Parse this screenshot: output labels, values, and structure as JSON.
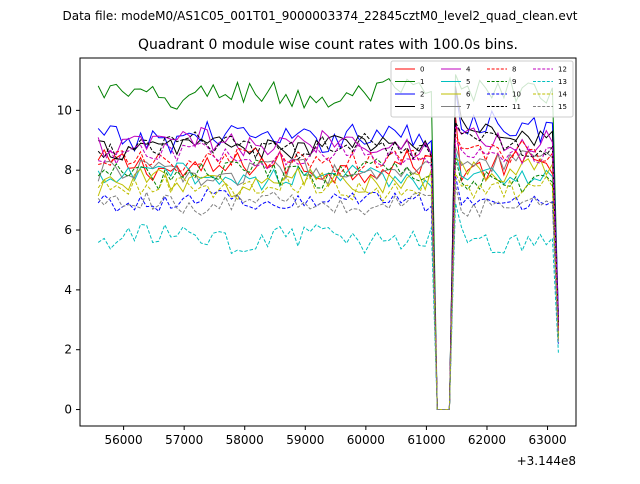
{
  "chart_data": {
    "type": "line",
    "suptitle": "Data file: modeM0/AS1C05_001T01_9000003374_22845cztM0_level2_quad_clean.evt",
    "title": "Quadrant 0 module wise count rates with 100.0s bins.",
    "xlabel": "",
    "ylabel": "",
    "x_offset_label": "+3.144e8",
    "xlim": [
      55280,
      63470
    ],
    "ylim": [
      -0.55,
      11.75
    ],
    "xticks": [
      56000,
      57000,
      58000,
      59000,
      60000,
      61000,
      62000,
      63000
    ],
    "xtick_labels": [
      "56000",
      "57000",
      "58000",
      "59000",
      "60000",
      "61000",
      "62000",
      "63000"
    ],
    "yticks": [
      0,
      2,
      4,
      6,
      8,
      10
    ],
    "ytick_labels": [
      "0",
      "2",
      "4",
      "6",
      "8",
      "10"
    ],
    "grid": false,
    "legend_position": "top-right",
    "legend_columns": 4,
    "gap_start": 61000,
    "gap_end": 61560,
    "x_start": 55580,
    "x_end": 63180,
    "x_step": 100,
    "series": [
      {
        "name": "0",
        "color": "#ff0000",
        "dash": "solid",
        "base": 8.1,
        "amp": 0.45,
        "phase": 0.3,
        "spike": 9.8,
        "post": 8.1,
        "end": 2.6
      },
      {
        "name": "1",
        "color": "#008000",
        "dash": "solid",
        "base": 10.5,
        "amp": 0.45,
        "phase": 1.1,
        "spike": 11.2,
        "post": 10.6,
        "end": 3.0
      },
      {
        "name": "2",
        "color": "#0000ff",
        "dash": "solid",
        "base": 9.1,
        "amp": 0.45,
        "phase": 2.0,
        "spike": 10.7,
        "post": 9.5,
        "end": 3.2
      },
      {
        "name": "3",
        "color": "#000000",
        "dash": "solid",
        "base": 8.8,
        "amp": 0.35,
        "phase": 2.7,
        "spike": 10.8,
        "post": 9.3,
        "end": 2.8
      },
      {
        "name": "4",
        "color": "#bf00bf",
        "dash": "solid",
        "base": 8.9,
        "amp": 0.4,
        "phase": 3.4,
        "spike": 9.5,
        "post": 9.0,
        "end": 3.0
      },
      {
        "name": "5",
        "color": "#00bfbf",
        "dash": "solid",
        "base": 7.8,
        "amp": 0.35,
        "phase": 4.1,
        "spike": 8.6,
        "post": 7.9,
        "end": 2.4
      },
      {
        "name": "6",
        "color": "#bfbf00",
        "dash": "solid",
        "base": 7.6,
        "amp": 0.4,
        "phase": 4.9,
        "spike": 8.4,
        "post": 8.0,
        "end": 2.5
      },
      {
        "name": "7",
        "color": "#808080",
        "dash": "solid",
        "base": 7.9,
        "amp": 0.35,
        "phase": 5.6,
        "spike": 8.8,
        "post": 8.3,
        "end": 2.6
      },
      {
        "name": "8",
        "color": "#ff0000",
        "dash": "dashed",
        "base": 8.3,
        "amp": 0.4,
        "phase": 0.8,
        "spike": 9.2,
        "post": 8.5,
        "end": 2.7
      },
      {
        "name": "9",
        "color": "#008000",
        "dash": "dashed",
        "base": 7.9,
        "amp": 0.4,
        "phase": 1.6,
        "spike": 8.4,
        "post": 7.6,
        "end": 2.4
      },
      {
        "name": "10",
        "color": "#0000ff",
        "dash": "dashed",
        "base": 7.0,
        "amp": 0.3,
        "phase": 2.3,
        "spike": 7.8,
        "post": 7.0,
        "end": 2.2
      },
      {
        "name": "11",
        "color": "#000000",
        "dash": "dashed",
        "base": 8.8,
        "amp": 0.35,
        "phase": 3.0,
        "spike": 9.6,
        "post": 8.9,
        "end": 2.8
      },
      {
        "name": "12",
        "color": "#bf00bf",
        "dash": "dashed",
        "base": 8.5,
        "amp": 0.35,
        "phase": 3.8,
        "spike": 9.0,
        "post": 8.6,
        "end": 2.6
      },
      {
        "name": "13",
        "color": "#00bfbf",
        "dash": "dashed",
        "base": 5.7,
        "amp": 0.4,
        "phase": 4.5,
        "spike": 6.9,
        "post": 5.6,
        "end": 1.9
      },
      {
        "name": "14",
        "color": "#bfbf00",
        "dash": "dashed",
        "base": 7.4,
        "amp": 0.35,
        "phase": 5.2,
        "spike": 7.9,
        "post": 7.4,
        "end": 2.3
      },
      {
        "name": "15",
        "color": "#808080",
        "dash": "dashed",
        "base": 6.9,
        "amp": 0.3,
        "phase": 6.0,
        "spike": 7.5,
        "post": 6.9,
        "end": 2.2
      }
    ]
  }
}
